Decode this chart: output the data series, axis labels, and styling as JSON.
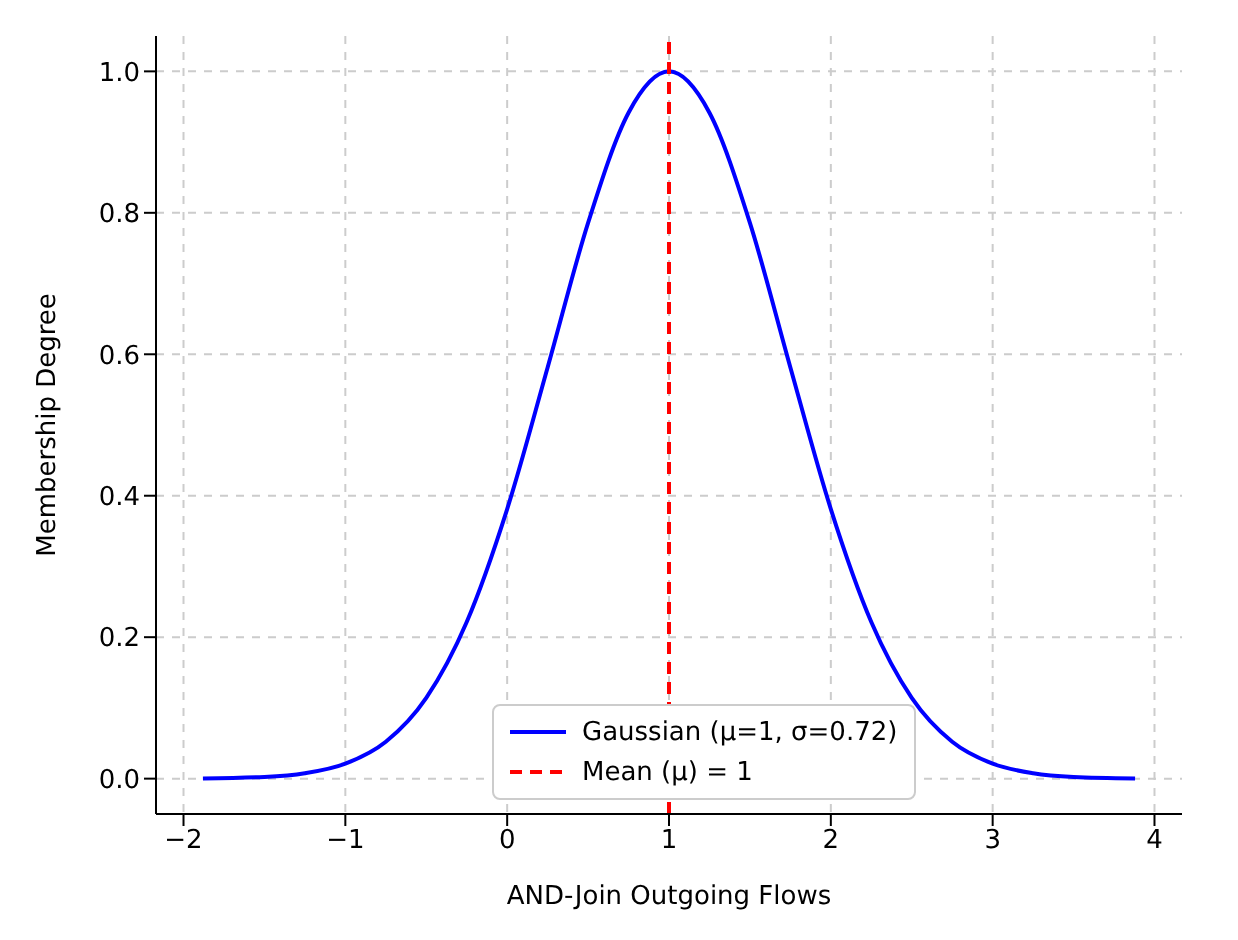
{
  "chart_data": {
    "type": "line",
    "xlabel": "AND-Join Outgoing Flows",
    "ylabel": "Membership Degree",
    "x": [
      -1.88,
      -1.5,
      -1.25,
      -1,
      -0.75,
      -0.5,
      -0.25,
      0,
      0.25,
      0.5,
      0.75,
      1,
      1.25,
      1.5,
      1.75,
      2,
      2.25,
      2.5,
      2.75,
      3,
      3.25,
      3.5,
      3.88
    ],
    "series": [
      {
        "name": "Gaussian (μ=1, σ=0.72)",
        "color": "#0000ff",
        "values": [
          0.0003,
          0.0024,
          0.0076,
          0.0211,
          0.0521,
          0.1142,
          0.2215,
          0.3812,
          0.5813,
          0.7858,
          0.9415,
          1,
          0.9415,
          0.7858,
          0.5813,
          0.3812,
          0.2215,
          0.1142,
          0.0521,
          0.0211,
          0.0076,
          0.0024,
          0.0003
        ]
      }
    ],
    "ref_lines": [
      {
        "axis": "x",
        "value": 1,
        "label": "Mean (μ) = 1",
        "color": "#ff0000",
        "line_style": "dashed"
      }
    ],
    "xlim": [
      -2.17,
      4.17
    ],
    "ylim": [
      -0.05,
      1.05
    ],
    "xticks": [
      {
        "value": -2,
        "label": "−2"
      },
      {
        "value": -1,
        "label": "−1"
      },
      0,
      1,
      2,
      3,
      4
    ],
    "yticks": [
      {
        "value": 0,
        "label": "0.0"
      },
      {
        "value": 0.2,
        "label": "0.2"
      },
      {
        "value": 0.4,
        "label": "0.4"
      },
      {
        "value": 0.6,
        "label": "0.6"
      },
      {
        "value": 0.8,
        "label": "0.8"
      },
      {
        "value": 1,
        "label": "1.0"
      }
    ],
    "grid": true,
    "legend": "bottom",
    "line_style": "solid",
    "marker": "none"
  }
}
